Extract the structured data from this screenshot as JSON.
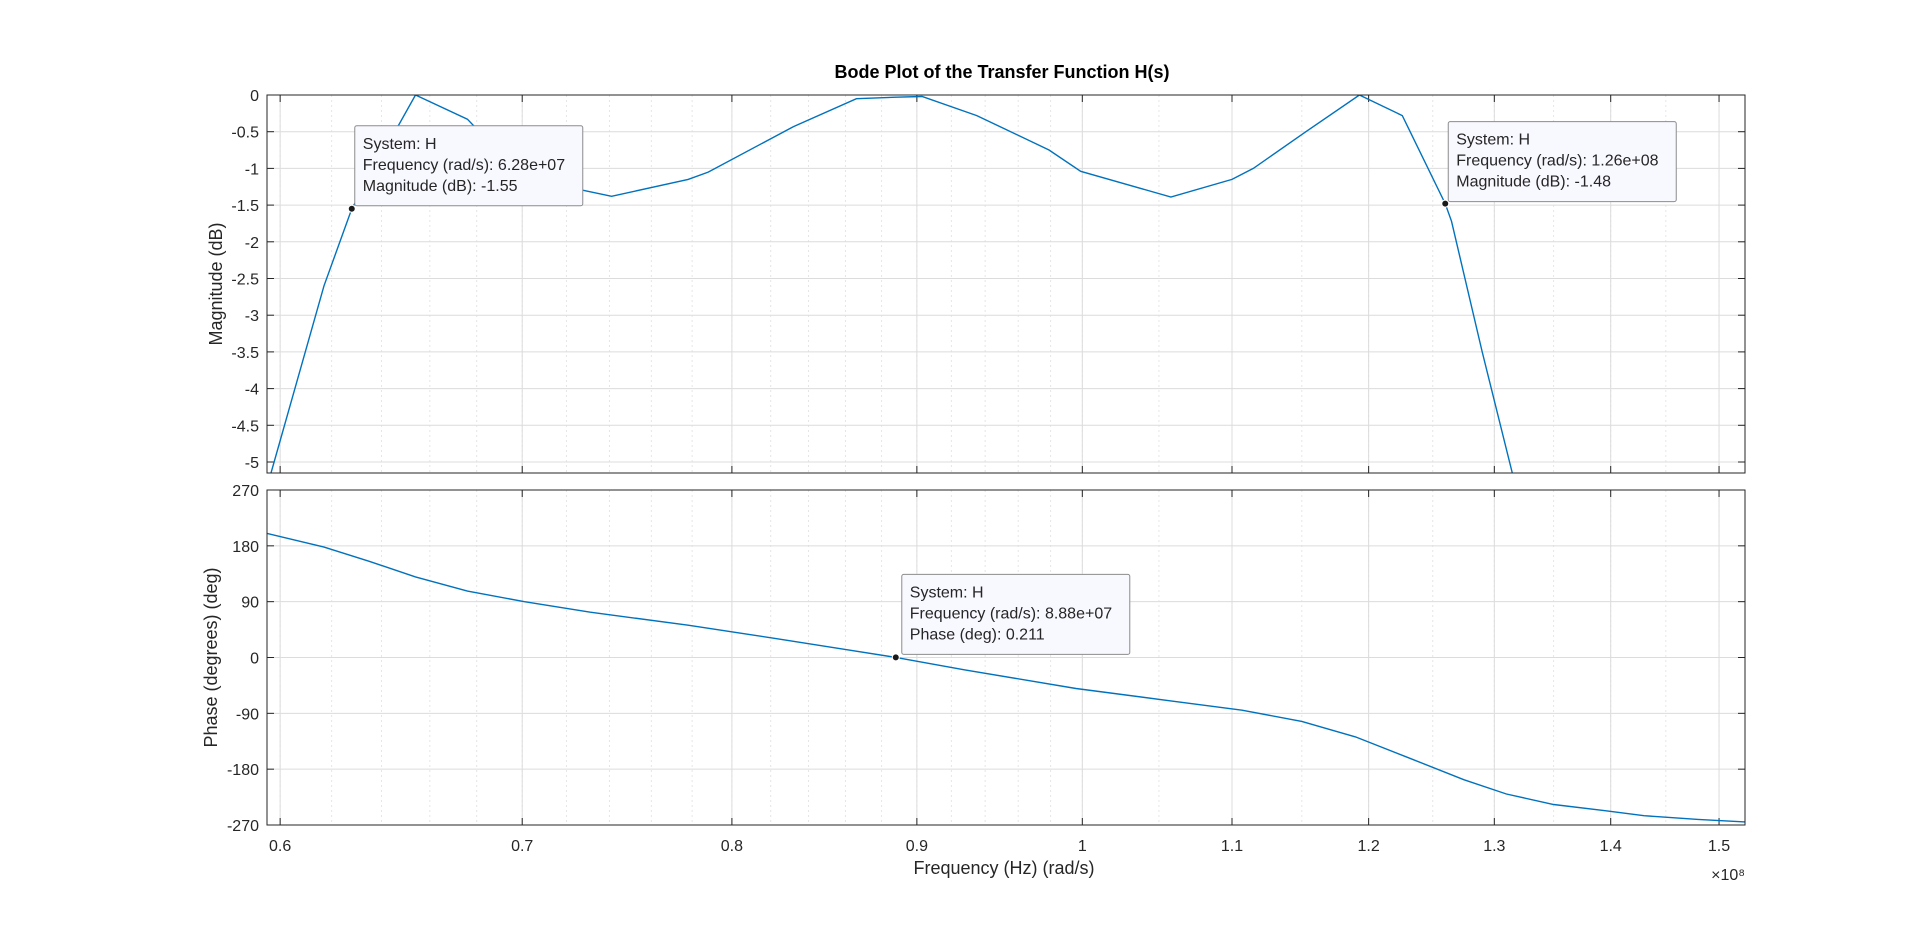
{
  "chart_data": {
    "type": "line",
    "title": "Bode Plot of the Transfer Function H(s)",
    "xlabel": "Frequency (Hz)  (rad/s)",
    "x_exponent_label": "×10⁸",
    "x_scale": "log",
    "xlim": [
      59500000,
      152500000
    ],
    "x_ticks": [
      60000000,
      70000000,
      80000000,
      90000000,
      100000000,
      110000000,
      120000000,
      130000000,
      140000000,
      150000000
    ],
    "x_tick_labels": [
      "0.6",
      "0.7",
      "0.8",
      "0.9",
      "1",
      "1.1",
      "1.2",
      "1.3",
      "1.4",
      "1.5"
    ],
    "grid": true,
    "color": "#0072BD",
    "panels": [
      {
        "name": "magnitude",
        "ylabel": "Magnitude (dB)",
        "ylim": [
          -5.15,
          0
        ],
        "y_ticks": [
          0,
          -0.5,
          -1,
          -1.5,
          -2,
          -2.5,
          -3,
          -3.5,
          -4,
          -4.5,
          -5
        ],
        "y_tick_labels": [
          "0",
          "-0.5",
          "-1",
          "-1.5",
          "-2",
          "-2.5",
          "-3",
          "-3.5",
          "-4",
          "-4.5",
          "-5"
        ],
        "series": [
          {
            "x": [
              59650000,
              61700000,
              62800000,
              65400000,
              67600000,
              69500000,
              71200000,
              74100000,
              77800000,
              78800000,
              83200000,
              86600000,
              88800000,
              90300000,
              93500000,
              97900000,
              99900000,
              105800000,
              110000000,
              111500000,
              115300000,
              119300000,
              122600000,
              126000000,
              126500000,
              129000000,
              131500000
            ],
            "y": [
              -5.15,
              -2.6,
              -1.55,
              0,
              -0.33,
              -0.95,
              -1.2,
              -1.38,
              -1.15,
              -1.05,
              -0.43,
              -0.05,
              -0.03,
              -0.02,
              -0.28,
              -0.75,
              -1.04,
              -1.39,
              -1.15,
              -1.0,
              -0.5,
              0,
              -0.28,
              -1.48,
              -1.72,
              -3.5,
              -5.15
            ]
          }
        ],
        "datatips": [
          {
            "system": "System: H",
            "frequency": "Frequency (rad/s): 6.28e+07",
            "value": "Magnitude (dB): -1.55",
            "x": 62800000,
            "y": -1.55
          },
          {
            "system": "System: H",
            "frequency": "Frequency (rad/s): 1.26e+08",
            "value": "Magnitude (dB): -1.48",
            "x": 126000000,
            "y": -1.48
          }
        ]
      },
      {
        "name": "phase",
        "ylabel": "Phase (degrees) (deg)",
        "ylim": [
          -270,
          270
        ],
        "y_ticks": [
          270,
          180,
          90,
          0,
          -90,
          -180,
          -270
        ],
        "y_tick_labels": [
          "270",
          "180",
          "90",
          "0",
          "-90",
          "-180",
          "-270"
        ],
        "series": [
          {
            "x": [
              59500000,
              61700000,
              63500000,
              65400000,
              67600000,
              70100000,
              73100000,
              77800000,
              82400000,
              86200000,
              88800000,
              92800000,
              99600000,
              105800000,
              110700000,
              115000000,
              119000000,
              122900000,
              127500000,
              131000000,
              135000000,
              139500000,
              143000000,
              148000000,
              152500000
            ],
            "y": [
              200,
              178,
              155,
              130,
              107,
              90,
              73,
              52,
              30,
              12,
              0.2,
              -20,
              -50,
              -70,
              -85,
              -103,
              -128,
              -160,
              -197,
              -220,
              -237,
              -247,
              -255,
              -261,
              -265
            ]
          }
        ],
        "datatips": [
          {
            "system": "System: H",
            "frequency": "Frequency (rad/s): 8.88e+07",
            "value": "Phase (deg): 0.211",
            "x": 88800000,
            "y": 0.211
          }
        ]
      }
    ]
  }
}
